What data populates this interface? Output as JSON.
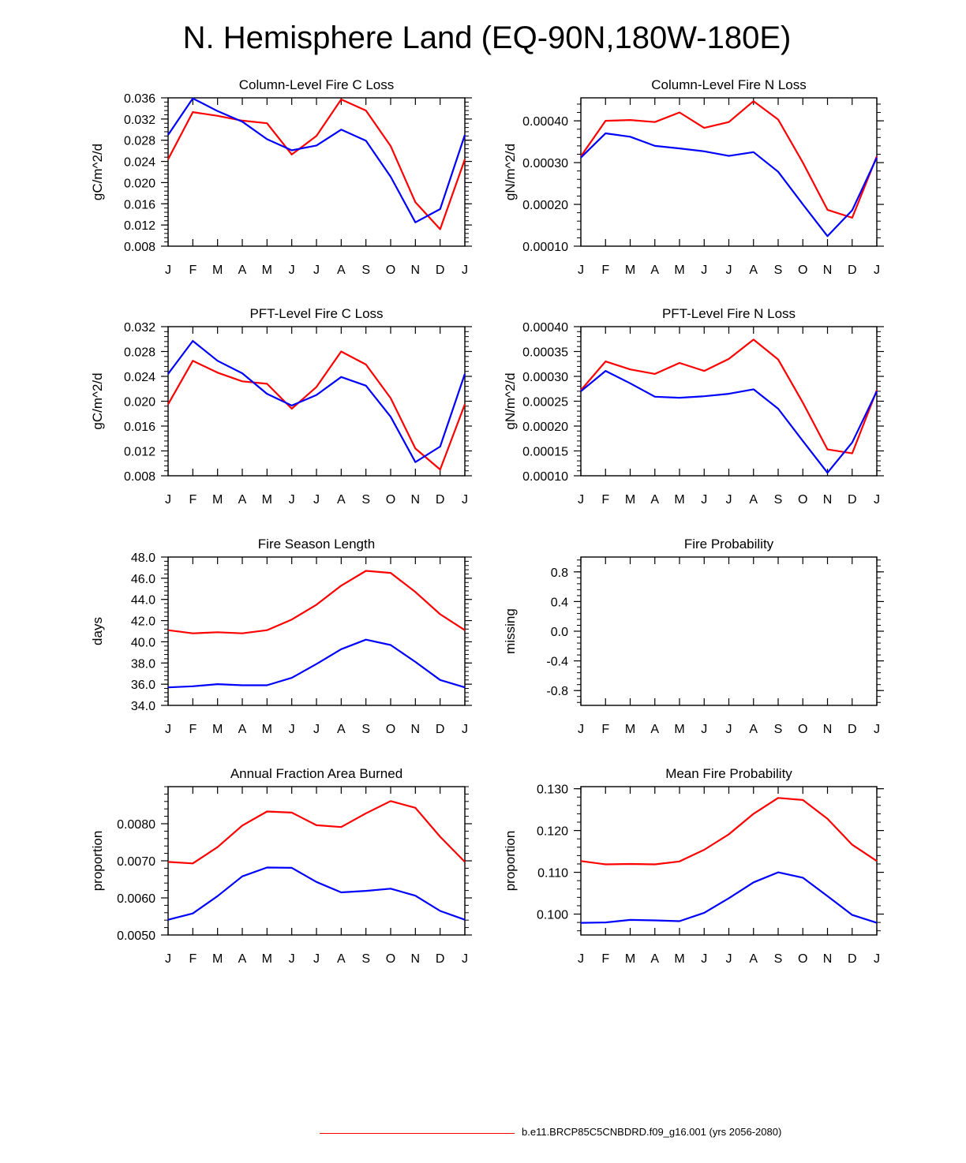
{
  "title": "N. Hemisphere Land (EQ-90N,180W-180E)",
  "legend": {
    "label": "b.e11.BRCP85C5CNBDRD.f09_g16.001 (yrs 2056-2080)",
    "color": "#ff0000"
  },
  "colors": {
    "red": "#ff0000",
    "blue": "#0000ff"
  },
  "chart_data": [
    {
      "type": "line",
      "title": "Column-Level Fire C Loss",
      "ylabel": "gC/m^2/d",
      "categories": [
        "J",
        "F",
        "M",
        "A",
        "M",
        "J",
        "J",
        "A",
        "S",
        "O",
        "N",
        "D",
        "J"
      ],
      "ylim": [
        0.008,
        0.036
      ],
      "yticks": [
        "0.008",
        "0.012",
        "0.016",
        "0.020",
        "0.024",
        "0.028",
        "0.032",
        "0.036"
      ],
      "series": [
        {
          "name": "red",
          "values": [
            0.0244,
            0.0333,
            0.0326,
            0.0317,
            0.0312,
            0.0253,
            0.0288,
            0.0357,
            0.0336,
            0.0269,
            0.0163,
            0.0112,
            0.0244
          ]
        },
        {
          "name": "blue",
          "values": [
            0.029,
            0.0359,
            0.0335,
            0.0315,
            0.0282,
            0.0261,
            0.027,
            0.03,
            0.0279,
            0.0211,
            0.0125,
            0.015,
            0.029
          ]
        }
      ]
    },
    {
      "type": "line",
      "title": "Column-Level Fire N Loss",
      "ylabel": "gN/m^2/d",
      "categories": [
        "J",
        "F",
        "M",
        "A",
        "M",
        "J",
        "J",
        "A",
        "S",
        "O",
        "N",
        "D",
        "J"
      ],
      "ylim": [
        0.0001,
        0.000455
      ],
      "yticks": [
        "0.00010",
        "0.00020",
        "0.00030",
        "0.00040"
      ],
      "ytick_values": [
        0.0001,
        0.0002,
        0.0003,
        0.0004
      ],
      "series": [
        {
          "name": "red",
          "values": [
            0.000315,
            0.0004,
            0.000402,
            0.000397,
            0.00042,
            0.000383,
            0.000397,
            0.000447,
            0.000403,
            0.0003,
            0.000187,
            0.000168,
            0.000315
          ]
        },
        {
          "name": "blue",
          "values": [
            0.000312,
            0.00037,
            0.000362,
            0.00034,
            0.000334,
            0.000327,
            0.000316,
            0.000325,
            0.000278,
            0.0002,
            0.000124,
            0.000186,
            0.000312
          ]
        }
      ]
    },
    {
      "type": "line",
      "title": "PFT-Level Fire C Loss",
      "ylabel": "gC/m^2/d",
      "categories": [
        "J",
        "F",
        "M",
        "A",
        "M",
        "J",
        "J",
        "A",
        "S",
        "O",
        "N",
        "D",
        "J"
      ],
      "ylim": [
        0.008,
        0.032
      ],
      "yticks": [
        "0.008",
        "0.012",
        "0.016",
        "0.020",
        "0.024",
        "0.028",
        "0.032"
      ],
      "series": [
        {
          "name": "red",
          "values": [
            0.0195,
            0.0265,
            0.0246,
            0.0232,
            0.0228,
            0.0188,
            0.0223,
            0.028,
            0.0259,
            0.0205,
            0.0124,
            0.009,
            0.0195
          ]
        },
        {
          "name": "blue",
          "values": [
            0.0244,
            0.0297,
            0.0265,
            0.0245,
            0.0212,
            0.0193,
            0.021,
            0.0239,
            0.0225,
            0.0175,
            0.0102,
            0.0127,
            0.0244
          ]
        }
      ]
    },
    {
      "type": "line",
      "title": "PFT-Level Fire N Loss",
      "ylabel": "gN/m^2/d",
      "categories": [
        "J",
        "F",
        "M",
        "A",
        "M",
        "J",
        "J",
        "A",
        "S",
        "O",
        "N",
        "D",
        "J"
      ],
      "ylim": [
        0.0001,
        0.0004
      ],
      "yticks": [
        "0.00010",
        "0.00015",
        "0.00020",
        "0.00025",
        "0.00030",
        "0.00035",
        "0.00040"
      ],
      "series": [
        {
          "name": "red",
          "values": [
            0.000272,
            0.00033,
            0.000314,
            0.000305,
            0.000327,
            0.000311,
            0.000335,
            0.000374,
            0.000334,
            0.000247,
            0.000153,
            0.000145,
            0.000272
          ]
        },
        {
          "name": "blue",
          "values": [
            0.00027,
            0.000311,
            0.000286,
            0.000259,
            0.000257,
            0.00026,
            0.000265,
            0.000274,
            0.000235,
            0.00017,
            0.000106,
            0.000167,
            0.00027
          ]
        }
      ]
    },
    {
      "type": "line",
      "title": "Fire Season Length",
      "ylabel": "days",
      "categories": [
        "J",
        "F",
        "M",
        "A",
        "M",
        "J",
        "J",
        "A",
        "S",
        "O",
        "N",
        "D",
        "J"
      ],
      "ylim": [
        34.0,
        48.0
      ],
      "yticks": [
        "34.0",
        "36.0",
        "38.0",
        "40.0",
        "42.0",
        "44.0",
        "46.0",
        "48.0"
      ],
      "series": [
        {
          "name": "red",
          "values": [
            41.1,
            40.8,
            40.9,
            40.8,
            41.1,
            42.1,
            43.5,
            45.3,
            46.7,
            46.5,
            44.7,
            42.6,
            41.1
          ]
        },
        {
          "name": "blue",
          "values": [
            35.7,
            35.8,
            36.0,
            35.9,
            35.9,
            36.6,
            37.9,
            39.3,
            40.2,
            39.7,
            38.1,
            36.4,
            35.7
          ]
        }
      ]
    },
    {
      "type": "line",
      "title": "Fire Probability",
      "ylabel": "missing",
      "categories": [
        "J",
        "F",
        "M",
        "A",
        "M",
        "J",
        "J",
        "A",
        "S",
        "O",
        "N",
        "D",
        "J"
      ],
      "ylim": [
        -1.0,
        1.0
      ],
      "yticks": [
        "-0.8",
        "-0.4",
        "0.0",
        "0.4",
        "0.8"
      ],
      "ytick_values": [
        -0.8,
        -0.4,
        0.0,
        0.4,
        0.8
      ],
      "series": []
    },
    {
      "type": "line",
      "title": "Annual Fraction Area Burned",
      "ylabel": "proportion",
      "categories": [
        "J",
        "F",
        "M",
        "A",
        "M",
        "J",
        "J",
        "A",
        "S",
        "O",
        "N",
        "D",
        "J"
      ],
      "ylim": [
        0.005,
        0.009
      ],
      "yticks": [
        "0.0050",
        "0.0060",
        "0.0070",
        "0.0080"
      ],
      "ytick_values": [
        0.005,
        0.006,
        0.007,
        0.008
      ],
      "series": [
        {
          "name": "red",
          "values": [
            0.00697,
            0.00693,
            0.00737,
            0.00795,
            0.00833,
            0.0083,
            0.00796,
            0.00791,
            0.00828,
            0.00861,
            0.00843,
            0.00765,
            0.00697
          ]
        },
        {
          "name": "blue",
          "values": [
            0.00541,
            0.00558,
            0.00605,
            0.00658,
            0.00682,
            0.00681,
            0.00643,
            0.00615,
            0.00619,
            0.00625,
            0.00606,
            0.00565,
            0.00541
          ]
        }
      ]
    },
    {
      "type": "line",
      "title": "Mean Fire Probability",
      "ylabel": "proportion",
      "categories": [
        "J",
        "F",
        "M",
        "A",
        "M",
        "J",
        "J",
        "A",
        "S",
        "O",
        "N",
        "D",
        "J"
      ],
      "ylim": [
        0.095,
        0.1305
      ],
      "yticks": [
        "0.100",
        "0.110",
        "0.120",
        "0.130"
      ],
      "ytick_values": [
        0.1,
        0.11,
        0.12,
        0.13
      ],
      "series": [
        {
          "name": "red",
          "values": [
            0.1127,
            0.1119,
            0.112,
            0.1119,
            0.1126,
            0.1154,
            0.1191,
            0.124,
            0.1278,
            0.1273,
            0.1228,
            0.1166,
            0.1127
          ]
        },
        {
          "name": "blue",
          "values": [
            0.0979,
            0.098,
            0.0986,
            0.0985,
            0.0983,
            0.1003,
            0.1038,
            0.1076,
            0.11,
            0.1087,
            0.1043,
            0.0998,
            0.0979
          ]
        }
      ]
    }
  ]
}
